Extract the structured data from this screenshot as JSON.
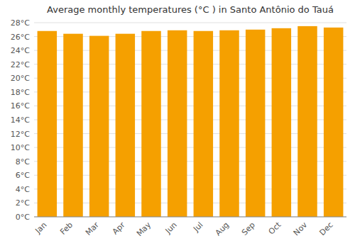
{
  "chart_data": {
    "type": "bar",
    "title": "Average monthly temperatures (°C ) in Santo Antônio do Tauá",
    "categories": [
      "Jan",
      "Feb",
      "Mar",
      "Apr",
      "May",
      "Jun",
      "Jul",
      "Aug",
      "Sep",
      "Oct",
      "Nov",
      "Dec"
    ],
    "values": [
      26.8,
      26.4,
      26.1,
      26.4,
      26.8,
      26.9,
      26.8,
      26.9,
      27.0,
      27.2,
      27.5,
      27.3
    ],
    "color": "#F5A000",
    "ylim": [
      0,
      28
    ],
    "yticks": [
      {
        "value": 0,
        "label": "0°C"
      },
      {
        "value": 2,
        "label": "2°C"
      },
      {
        "value": 4,
        "label": "4°C"
      },
      {
        "value": 6,
        "label": "6°C"
      },
      {
        "value": 8,
        "label": "8°C"
      },
      {
        "value": 10,
        "label": "10°C"
      },
      {
        "value": 12,
        "label": "12°C"
      },
      {
        "value": 14,
        "label": "14°C"
      },
      {
        "value": 16,
        "label": "16°C"
      },
      {
        "value": 18,
        "label": "18°C"
      },
      {
        "value": 20,
        "label": "20°C"
      },
      {
        "value": 22,
        "label": "22°C"
      },
      {
        "value": 24,
        "label": "24°C"
      },
      {
        "value": 26,
        "label": "26°C"
      },
      {
        "value": 28,
        "label": "28°C"
      }
    ],
    "grid": true
  }
}
